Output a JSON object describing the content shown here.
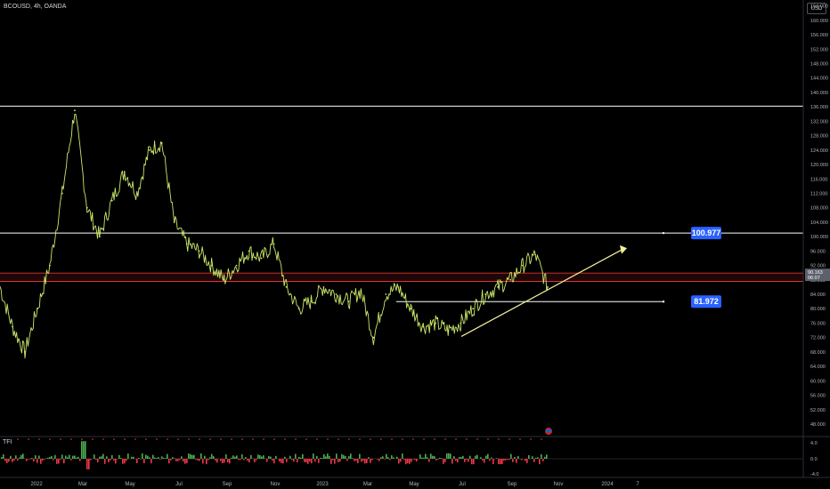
{
  "header": {
    "ticker": "BCOUSD, 4h, OANDA",
    "currency": "USD"
  },
  "price_axis": {
    "labels": [
      "48.000",
      "52.000",
      "56.000",
      "60.000",
      "64.000",
      "68.000",
      "72.000",
      "76.000",
      "80.000",
      "84.000",
      "88.000",
      "92.000",
      "96.000",
      "100.000",
      "104.000",
      "108.000",
      "112.000",
      "116.000",
      "120.000",
      "124.000",
      "128.000",
      "132.000",
      "136.000",
      "140.000",
      "144.000",
      "148.000",
      "152.000",
      "156.000",
      "160.000",
      "164.000"
    ],
    "current_price_top": "90.163",
    "current_price_bottom": "06:07"
  },
  "time_axis": {
    "labels": [
      "2022",
      "Mar",
      "May",
      "Jul",
      "Sep",
      "Nov",
      "2023",
      "Mar",
      "May",
      "Jul",
      "Sep",
      "Nov",
      "2024",
      "7"
    ]
  },
  "indicator": {
    "name": "TFI",
    "axis_labels": [
      "4.0",
      "0.0",
      "-4.0"
    ]
  },
  "levels": {
    "upper_badge": "100.977",
    "lower_badge": "81.972",
    "top_line_value": 136.2,
    "zone_high": 89.9,
    "zone_low": 87.6
  },
  "colors": {
    "background": "#000000",
    "candle_line": "#c9e86a",
    "level_line": "#ffffff",
    "zone": "#ff3b3b",
    "trendline": "#f4f09a",
    "badge": "#2962ff",
    "hist_up": "#4caf50",
    "hist_down": "#f23645"
  },
  "chart_data": {
    "type": "line",
    "title": "BCOUSD, 4h, OANDA",
    "xlabel": "",
    "ylabel": "",
    "ylim": [
      48,
      166
    ],
    "grid": false,
    "x": [
      "2022-01",
      "2022-01",
      "2022-02",
      "2022-02",
      "2022-03",
      "2022-03",
      "2022-03",
      "2022-04",
      "2022-04",
      "2022-05",
      "2022-05",
      "2022-06",
      "2022-06",
      "2022-07",
      "2022-07",
      "2022-08",
      "2022-08",
      "2022-09",
      "2022-09",
      "2022-10",
      "2022-10",
      "2022-11",
      "2022-11",
      "2022-12",
      "2022-12",
      "2023-01",
      "2023-01",
      "2023-02",
      "2023-02",
      "2023-03",
      "2023-03",
      "2023-04",
      "2023-04",
      "2023-05",
      "2023-05",
      "2023-06",
      "2023-06",
      "2023-07",
      "2023-07",
      "2023-08",
      "2023-08",
      "2023-09",
      "2023-09",
      "2023-10",
      "2023-10"
    ],
    "series": [
      {
        "values": [
          86,
          75,
          68,
          80,
          92,
          112,
          135,
          108,
          100,
          110,
          118,
          112,
          124,
          126,
          104,
          98,
          96,
          92,
          88,
          92,
          96,
          94,
          98,
          86,
          80,
          82,
          86,
          84,
          82,
          85,
          72,
          84,
          86,
          80,
          75,
          76,
          74,
          76,
          80,
          84,
          86,
          88,
          92,
          95,
          86
        ]
      }
    ],
    "horizontal_levels": [
      136.2,
      100.977,
      81.972
    ],
    "support_zone": [
      87.6,
      89.9
    ],
    "trendline": {
      "from": [
        "2023-07",
        72.3
      ],
      "to": [
        "2023-12",
        96.6
      ]
    },
    "indicator_ylim": [
      -4,
      4
    ]
  }
}
